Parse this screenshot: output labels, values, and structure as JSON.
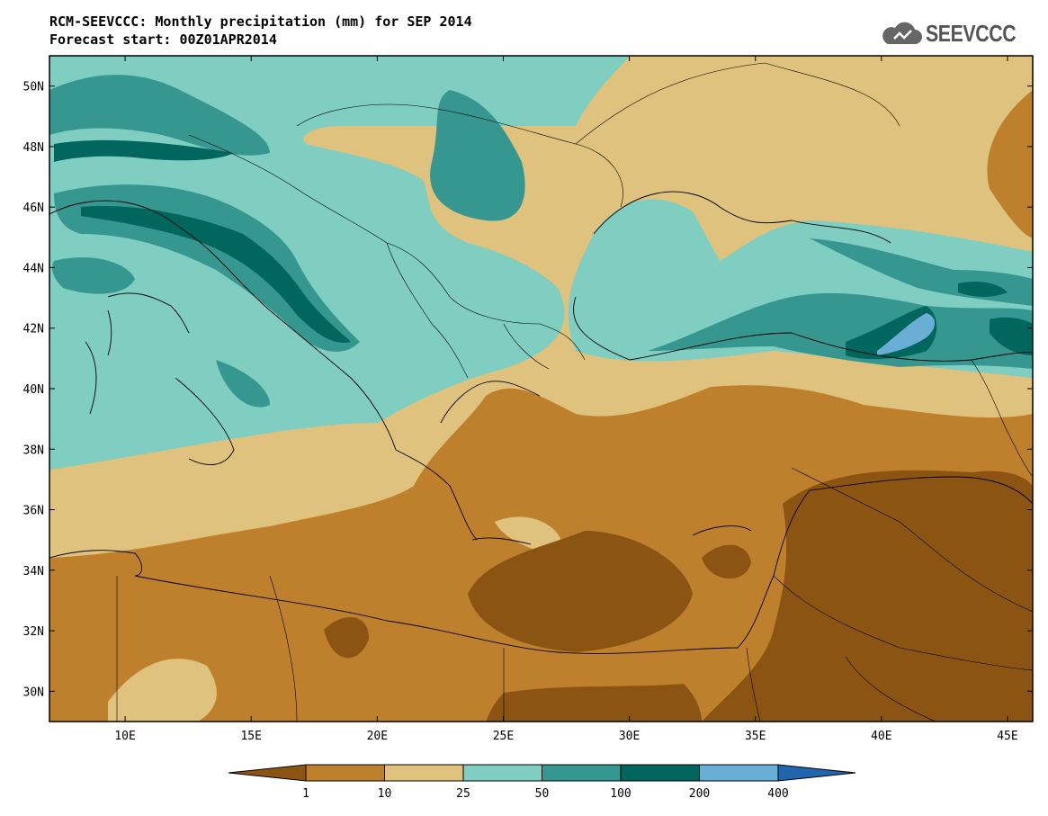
{
  "title": {
    "line1": "RCM-SEEVCCC: Monthly precipitation (mm) for SEP 2014",
    "line2": "Forecast start: 00Z01APR2014"
  },
  "logo": {
    "text": "SEEVCCC",
    "icon": "cloud-icon"
  },
  "map": {
    "variable": "Monthly precipitation",
    "unit": "mm",
    "lon_range": [
      7,
      46
    ],
    "lat_range": [
      29,
      51
    ],
    "lon_ticks": [
      "10E",
      "15E",
      "20E",
      "25E",
      "30E",
      "35E",
      "40E",
      "45E"
    ],
    "lat_ticks": [
      "50N",
      "48N",
      "46N",
      "44N",
      "42N",
      "40N",
      "38N",
      "36N",
      "34N",
      "32N",
      "30N"
    ]
  },
  "legend": {
    "thresholds": [
      "1",
      "10",
      "25",
      "50",
      "100",
      "200",
      "400"
    ],
    "colors": [
      "#8c5413",
      "#bf802e",
      "#dfc27d",
      "#80cdc1",
      "#35978f",
      "#01665e",
      "#6aaed6",
      "#2166ac"
    ]
  }
}
